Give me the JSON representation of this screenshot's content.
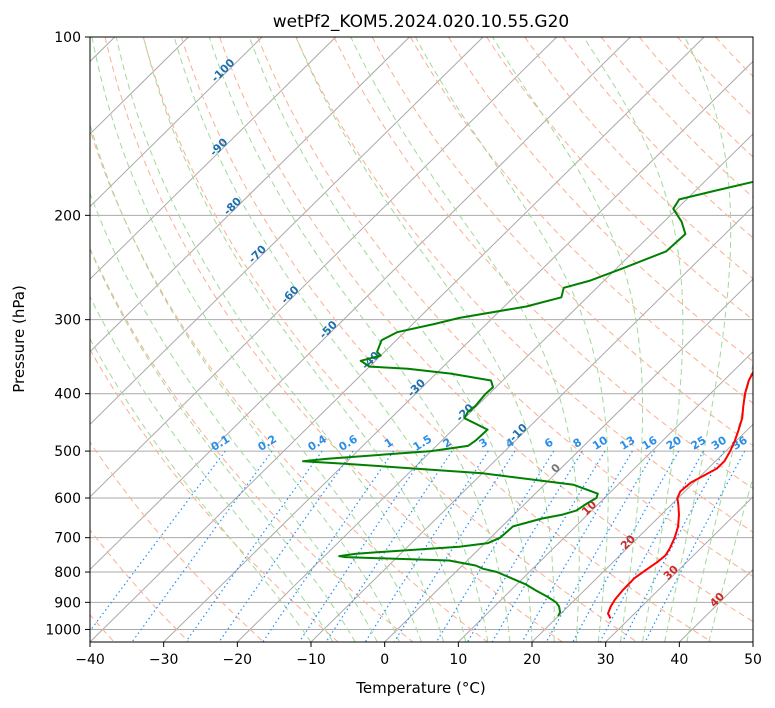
{
  "chart_data": {
    "type": "line",
    "subtype": "skew-t log-p diagram",
    "title": "wetPf2_KOM5.2024.020.10.55.G20",
    "xlabel": "Temperature (°C)",
    "ylabel": "Pressure (hPa)",
    "xlim": [
      -40,
      50
    ],
    "ylim": [
      1050,
      100
    ],
    "y_scale": "log",
    "x_ticks": [
      -40,
      -30,
      -20,
      -10,
      0,
      10,
      20,
      30,
      40,
      50
    ],
    "y_ticks": [
      100,
      200,
      300,
      400,
      500,
      600,
      700,
      800,
      900,
      1000
    ],
    "grid": true,
    "series": [
      {
        "id": "temperature",
        "color": "#ff0000",
        "points": [
          [
            958,
            27.4
          ],
          [
            940,
            26.4
          ],
          [
            915,
            25.8
          ],
          [
            890,
            25.4
          ],
          [
            860,
            25.2
          ],
          [
            820,
            25.1
          ],
          [
            790,
            25.6
          ],
          [
            770,
            26.0
          ],
          [
            750,
            26.2
          ],
          [
            730,
            25.8
          ],
          [
            700,
            25.0
          ],
          [
            670,
            23.9
          ],
          [
            640,
            22.4
          ],
          [
            615,
            20.9
          ],
          [
            600,
            19.9
          ],
          [
            585,
            19.4
          ],
          [
            565,
            19.6
          ],
          [
            550,
            20.4
          ],
          [
            535,
            21.2
          ],
          [
            520,
            21.2
          ],
          [
            500,
            20.6
          ],
          [
            480,
            19.8
          ],
          [
            460,
            18.8
          ],
          [
            440,
            17.7
          ],
          [
            420,
            16.2
          ],
          [
            400,
            14.7
          ],
          [
            380,
            13.4
          ],
          [
            365,
            12.7
          ],
          [
            350,
            12.3
          ],
          [
            330,
            12.3
          ],
          [
            300,
            11.6
          ],
          [
            270,
            9.9
          ],
          [
            240,
            8.0
          ],
          [
            210,
            5.6
          ],
          [
            190,
            3.9
          ],
          [
            170,
            2.4
          ],
          [
            150,
            1.3
          ],
          [
            138,
            0.6
          ],
          [
            132,
            0.4
          ],
          [
            125,
            1.0
          ],
          [
            115,
            1.9
          ],
          [
            108,
            2.1
          ],
          [
            100,
            2.3
          ]
        ]
      },
      {
        "id": "dewpoint",
        "color": "#008000",
        "points": [
          [
            950,
            20.0
          ],
          [
            935,
            19.7
          ],
          [
            915,
            18.8
          ],
          [
            900,
            17.8
          ],
          [
            880,
            15.8
          ],
          [
            860,
            13.5
          ],
          [
            840,
            11.3
          ],
          [
            820,
            8.5
          ],
          [
            800,
            5.6
          ],
          [
            790,
            3.3
          ],
          [
            780,
            1.8
          ],
          [
            765,
            -2.5
          ],
          [
            760,
            -10.0
          ],
          [
            755,
            -17.0
          ],
          [
            752,
            -18.0
          ],
          [
            745,
            -16.0
          ],
          [
            740,
            -13.0
          ],
          [
            725,
            -3.0
          ],
          [
            715,
            0.4
          ],
          [
            700,
            1.3
          ],
          [
            685,
            1.4
          ],
          [
            670,
            1.5
          ],
          [
            650,
            4.3
          ],
          [
            640,
            6.6
          ],
          [
            630,
            7.9
          ],
          [
            615,
            8.3
          ],
          [
            605,
            8.7
          ],
          [
            600,
            8.9
          ],
          [
            590,
            8.5
          ],
          [
            570,
            4.0
          ],
          [
            545,
            -10.0
          ],
          [
            535,
            -20.0
          ],
          [
            525,
            -30.0
          ],
          [
            520,
            -36.0
          ],
          [
            515,
            -33.0
          ],
          [
            500,
            -20.0
          ],
          [
            490,
            -15.7
          ],
          [
            480,
            -15.4
          ],
          [
            460,
            -15.3
          ],
          [
            440,
            -20.0
          ],
          [
            430,
            -20.4
          ],
          [
            420,
            -20.2
          ],
          [
            400,
            -20.5
          ],
          [
            390,
            -20.4
          ],
          [
            380,
            -21.6
          ],
          [
            370,
            -28.0
          ],
          [
            363,
            -34.5
          ],
          [
            360,
            -40.0
          ],
          [
            352,
            -42.0
          ],
          [
            345,
            -40.0
          ],
          [
            340,
            -41.0
          ],
          [
            325,
            -42.0
          ],
          [
            315,
            -41.0
          ],
          [
            305,
            -37.0
          ],
          [
            298,
            -34.5
          ],
          [
            285,
            -27.0
          ],
          [
            275,
            -23.5
          ],
          [
            265,
            -24.5
          ],
          [
            258,
            -22.0
          ],
          [
            245,
            -19.0
          ],
          [
            230,
            -15.6
          ],
          [
            215,
            -15.4
          ],
          [
            205,
            -17.6
          ],
          [
            195,
            -20.5
          ],
          [
            188,
            -21.0
          ],
          [
            182,
            -17.5
          ],
          [
            175,
            -13.0
          ],
          [
            165,
            -11.7
          ],
          [
            150,
            -9.5
          ],
          [
            140,
            -8.6
          ],
          [
            132,
            -8.2
          ],
          [
            125,
            -8.9
          ],
          [
            118,
            -6.3
          ],
          [
            108,
            -3.5
          ],
          [
            100,
            -2.5
          ]
        ]
      }
    ],
    "dry_adiabat_labels": [
      "-100",
      "-90",
      "-80",
      "-70",
      "-60",
      "-50",
      "-40",
      "-30",
      "-20",
      "-10",
      "0",
      "10",
      "20",
      "30",
      "40"
    ],
    "mixing_ratio_labels": [
      "0.1",
      "0.2",
      "0.4",
      "0.6",
      "1",
      "1.5",
      "2",
      "3",
      "4",
      "6",
      "8",
      "10",
      "13",
      "16",
      "20",
      "25",
      "30",
      "36"
    ],
    "background_lines": {
      "isotherm_color": "#a9a9a9",
      "dry_adiabat_color": "#fcae91",
      "moist_adiabat_color": "#a1d99b",
      "mixing_ratio_color": "#1e90ff",
      "isobar_color": "#aaaaaa"
    }
  }
}
